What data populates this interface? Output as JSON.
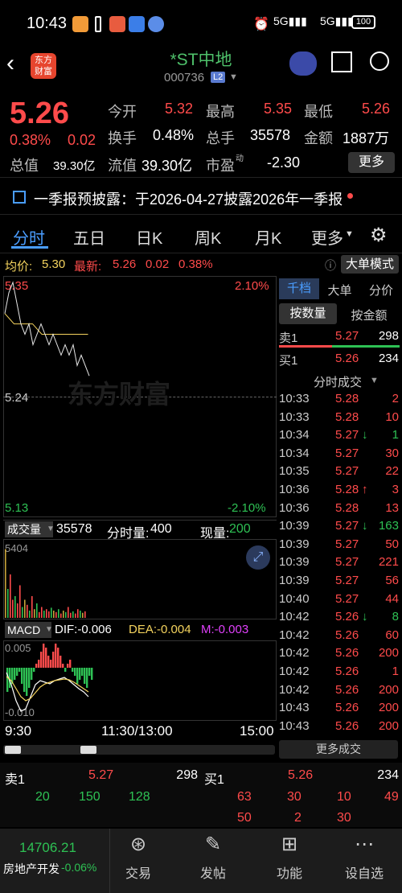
{
  "status": {
    "time": "10:43",
    "battery": "100"
  },
  "header": {
    "title": "*ST中地",
    "code": "000736",
    "badge": "L2"
  },
  "quote": {
    "price": "5.26",
    "pct": "0.38%",
    "chg": "0.02",
    "jk_label": "今开",
    "jk": "5.32",
    "zg_label": "最高",
    "zg": "5.35",
    "zd_label": "最低",
    "zd": "5.26",
    "hs_label": "换手",
    "hs": "0.48%",
    "zs_label": "总手",
    "zs": "35578",
    "je_label": "金额",
    "je": "1887万",
    "zz_label": "总值",
    "zz": "39.30亿",
    "lt_label": "流值",
    "lt": "39.30亿",
    "sy_label": "市盈",
    "sy_sup": "动",
    "sy": "-2.30",
    "more": "更多"
  },
  "notice": "一季报预披露：于2026-04-27披露2026年一季报",
  "tabs": [
    "分时",
    "五日",
    "日K",
    "周K",
    "月K",
    "更多"
  ],
  "chart": {
    "avg_label": "均价:",
    "avg": "5.30",
    "latest_label": "最新:",
    "latest": "5.26",
    "latest_chg": "0.02",
    "latest_pct": "0.38%",
    "big_mode": "大单模式",
    "y_top": "5.35",
    "y_top_pct": "2.10%",
    "y_mid": "5.24",
    "y_bot": "5.13",
    "y_bot_pct": "-2.10%",
    "watermark": "东方财富",
    "vol_label": "成交量",
    "vol": "35578",
    "fs_label": "分时量:",
    "fs": "400",
    "xl_label": "现量:",
    "xl": "200",
    "vol_max": "5404",
    "macd_label": "MACD",
    "dif": "DIF:-0.006",
    "dea": "DEA:-0.004",
    "m": "M:-0.003",
    "macd_top": "0.005",
    "macd_bot": "-0.010",
    "x_labels": [
      "9:30",
      "11:30/13:00",
      "15:00"
    ]
  },
  "chart_data": {
    "type": "line",
    "price_line": [
      5.32,
      5.34,
      5.35,
      5.33,
      5.31,
      5.3,
      5.31,
      5.29,
      5.3,
      5.31,
      5.3,
      5.29,
      5.3,
      5.29,
      5.28,
      5.29,
      5.28,
      5.29,
      5.27,
      5.28,
      5.27,
      5.26
    ],
    "avg_line": [
      5.32,
      5.31,
      5.31,
      5.31,
      5.3,
      5.3,
      5.3,
      5.3,
      5.3,
      5.3
    ],
    "ylim": [
      5.13,
      5.35
    ]
  },
  "right": {
    "tabs": [
      "千档",
      "大单",
      "分价"
    ],
    "subtabs": [
      "按数量",
      "按金额"
    ],
    "sell1_label": "卖1",
    "sell1_price": "5.27",
    "sell1_vol": "298",
    "buy1_label": "买1",
    "buy1_price": "5.26",
    "buy1_vol": "234",
    "trades_title": "分时成交",
    "trades": [
      {
        "t": "10:33",
        "p": "5.28",
        "v": "2",
        "a": ""
      },
      {
        "t": "10:33",
        "p": "5.28",
        "v": "10",
        "a": ""
      },
      {
        "t": "10:34",
        "p": "5.27",
        "v": "1",
        "a": "↓"
      },
      {
        "t": "10:34",
        "p": "5.27",
        "v": "30",
        "a": ""
      },
      {
        "t": "10:35",
        "p": "5.27",
        "v": "22",
        "a": ""
      },
      {
        "t": "10:36",
        "p": "5.28",
        "v": "3",
        "a": "↑"
      },
      {
        "t": "10:36",
        "p": "5.28",
        "v": "13",
        "a": ""
      },
      {
        "t": "10:39",
        "p": "5.27",
        "v": "163",
        "a": "↓"
      },
      {
        "t": "10:39",
        "p": "5.27",
        "v": "50",
        "a": ""
      },
      {
        "t": "10:39",
        "p": "5.27",
        "v": "221",
        "a": ""
      },
      {
        "t": "10:39",
        "p": "5.27",
        "v": "56",
        "a": ""
      },
      {
        "t": "10:40",
        "p": "5.27",
        "v": "44",
        "a": ""
      },
      {
        "t": "10:42",
        "p": "5.26",
        "v": "8",
        "a": "↓"
      },
      {
        "t": "10:42",
        "p": "5.26",
        "v": "60",
        "a": ""
      },
      {
        "t": "10:42",
        "p": "5.26",
        "v": "200",
        "a": ""
      },
      {
        "t": "10:42",
        "p": "5.26",
        "v": "1",
        "a": ""
      },
      {
        "t": "10:42",
        "p": "5.26",
        "v": "200",
        "a": ""
      },
      {
        "t": "10:43",
        "p": "5.26",
        "v": "200",
        "a": ""
      },
      {
        "t": "10:43",
        "p": "5.26",
        "v": "200",
        "a": ""
      }
    ],
    "more_trades": "更多成交"
  },
  "bottom_quote": {
    "sell1_label": "卖1",
    "sell1_price": "5.27",
    "sell1_vol": "298",
    "buy1_label": "买1",
    "buy1_price": "5.26",
    "buy1_vol": "234",
    "row1_left": [
      "20",
      "150",
      "128"
    ],
    "row1_right": [
      "63",
      "30",
      "10",
      "49"
    ],
    "row2_right": [
      "50",
      "2",
      "30"
    ]
  },
  "tabbar": {
    "index_value": "14706.21",
    "index_name": "房地产开发",
    "index_pct": "-0.06%",
    "items": [
      "交易",
      "发帖",
      "功能",
      "设自选"
    ]
  }
}
